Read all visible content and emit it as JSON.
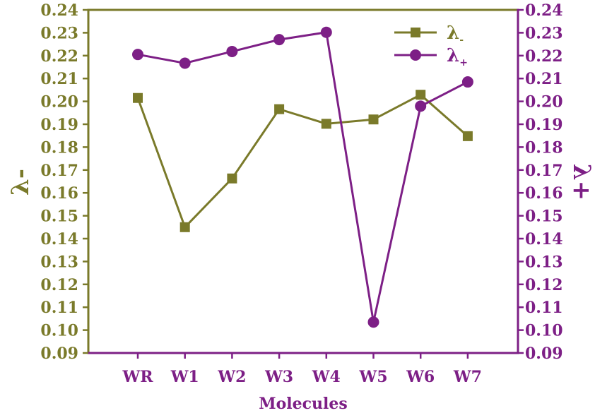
{
  "chart_data": {
    "type": "line",
    "categories": [
      "WR",
      "W1",
      "W2",
      "W3",
      "W4",
      "W5",
      "W6",
      "W7"
    ],
    "xlabel": "Molecules",
    "ylabel_left": "λ-",
    "ylabel_right": "λ+",
    "ylim_left": [
      0.09,
      0.24
    ],
    "ylim_right": [
      0.09,
      0.24
    ],
    "yticks": [
      "0.09",
      "0.10",
      "0.11",
      "0.12",
      "0.13",
      "0.14",
      "0.15",
      "0.16",
      "0.17",
      "0.18",
      "0.19",
      "0.20",
      "0.21",
      "0.22",
      "0.23",
      "0.24"
    ],
    "legend_position": "top-right",
    "grid": false,
    "series": [
      {
        "name": "λ-",
        "label_main": "λ",
        "label_sub": "-",
        "axis": "left",
        "marker": "square",
        "color": "#7a7a2a",
        "values": [
          0.2015,
          0.145,
          0.1663,
          0.1966,
          0.1902,
          0.1921,
          0.2029,
          0.1848
        ]
      },
      {
        "name": "λ+",
        "label_main": "λ",
        "label_sub": "+",
        "axis": "right",
        "marker": "circle",
        "color": "#7d1f86",
        "values": [
          0.2205,
          0.2167,
          0.2218,
          0.227,
          0.2302,
          0.1035,
          0.1979,
          0.2085
        ]
      }
    ]
  },
  "colors": {
    "olive": "#7a7a2a",
    "purple": "#7d1f86"
  }
}
